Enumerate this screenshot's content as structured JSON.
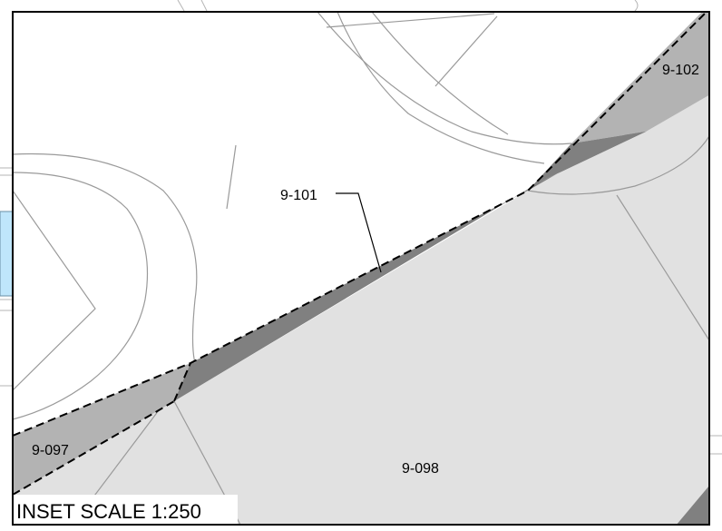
{
  "map": {
    "inset_label": "INSET SCALE 1:250",
    "parcels": [
      {
        "id": "9-101"
      },
      {
        "id": "9-102"
      },
      {
        "id": "9-097"
      },
      {
        "id": "9-098"
      }
    ]
  },
  "colors": {
    "background": "#ffffff",
    "parcel_light": "#e1e1e1",
    "parcel_medium": "#b3b3b3",
    "parcel_dark": "#808080",
    "parcel_lines": "#9a9a9a",
    "water": "#bfe6fb",
    "border": "#000000"
  }
}
